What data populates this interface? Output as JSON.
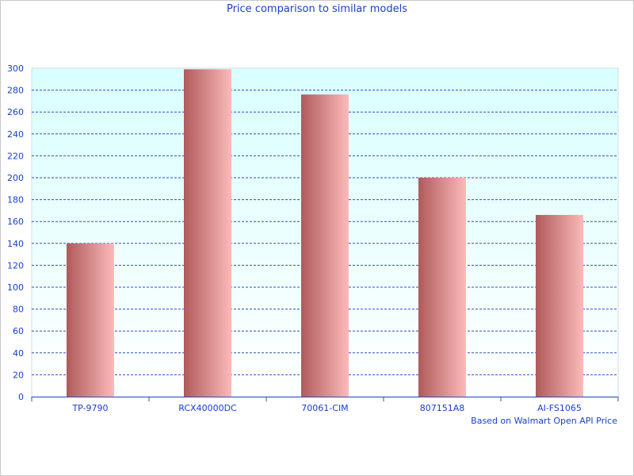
{
  "chart_data": {
    "type": "bar",
    "title": "Price comparison to similar models",
    "note": "Based on Walmart Open API Price",
    "xlabel": "",
    "ylabel": "",
    "categories": [
      "TP-9790",
      "RCX40000DC",
      "70061-CIM",
      "807151A8",
      "AI-FS1065"
    ],
    "values": [
      140,
      299,
      276,
      200,
      166
    ],
    "ylim": [
      0,
      300
    ],
    "yticks": [
      0,
      20,
      40,
      60,
      80,
      100,
      120,
      140,
      160,
      180,
      200,
      220,
      240,
      260,
      280,
      300
    ],
    "grid": true,
    "legend": "none",
    "colors": {
      "bar_dark": "#b05a5a",
      "bar_light": "#fcbaba",
      "grid": "#2b4fc9",
      "text": "#1a3fcc",
      "plot_bg_top": "#d9ffff",
      "plot_bg_bottom": "#ffffff"
    }
  }
}
